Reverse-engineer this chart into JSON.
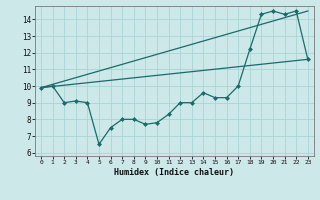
{
  "xlabel": "Humidex (Indice chaleur)",
  "xlim": [
    -0.5,
    23.5
  ],
  "ylim": [
    5.8,
    14.8
  ],
  "yticks": [
    6,
    7,
    8,
    9,
    10,
    11,
    12,
    13,
    14
  ],
  "xticks": [
    0,
    1,
    2,
    3,
    4,
    5,
    6,
    7,
    8,
    9,
    10,
    11,
    12,
    13,
    14,
    15,
    16,
    17,
    18,
    19,
    20,
    21,
    22,
    23
  ],
  "bg_color": "#cce8e8",
  "line_color": "#1a6b6b",
  "grid_color": "#aad4d4",
  "series1_x": [
    0,
    1,
    2,
    3,
    4,
    5,
    6,
    7,
    8,
    9,
    10,
    11,
    12,
    13,
    14,
    15,
    16,
    17,
    18,
    19,
    20,
    21,
    22,
    23
  ],
  "series1_y": [
    9.9,
    10.0,
    9.0,
    9.1,
    9.0,
    6.5,
    7.5,
    8.0,
    8.0,
    7.7,
    7.8,
    8.3,
    9.0,
    9.0,
    9.6,
    9.3,
    9.3,
    10.0,
    12.2,
    14.3,
    14.5,
    14.3,
    14.5,
    11.6
  ],
  "series2_x": [
    0,
    23
  ],
  "series2_y": [
    9.9,
    14.5
  ],
  "series3_x": [
    0,
    23
  ],
  "series3_y": [
    9.9,
    11.6
  ]
}
